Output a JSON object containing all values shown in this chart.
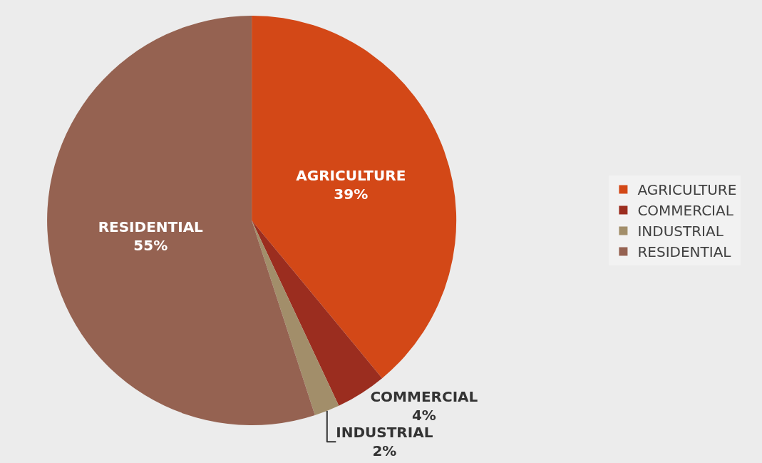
{
  "chart_data": {
    "type": "pie",
    "categories": [
      "AGRICULTURE",
      "COMMERCIAL",
      "INDUSTRIAL",
      "RESIDENTIAL"
    ],
    "values": [
      39,
      4,
      2,
      55
    ],
    "colors": [
      "#d34817",
      "#9b2d1f",
      "#a28e6a",
      "#956251"
    ],
    "value_labels": [
      "39%",
      "4%",
      "2%",
      "55%"
    ],
    "legend": "right"
  }
}
